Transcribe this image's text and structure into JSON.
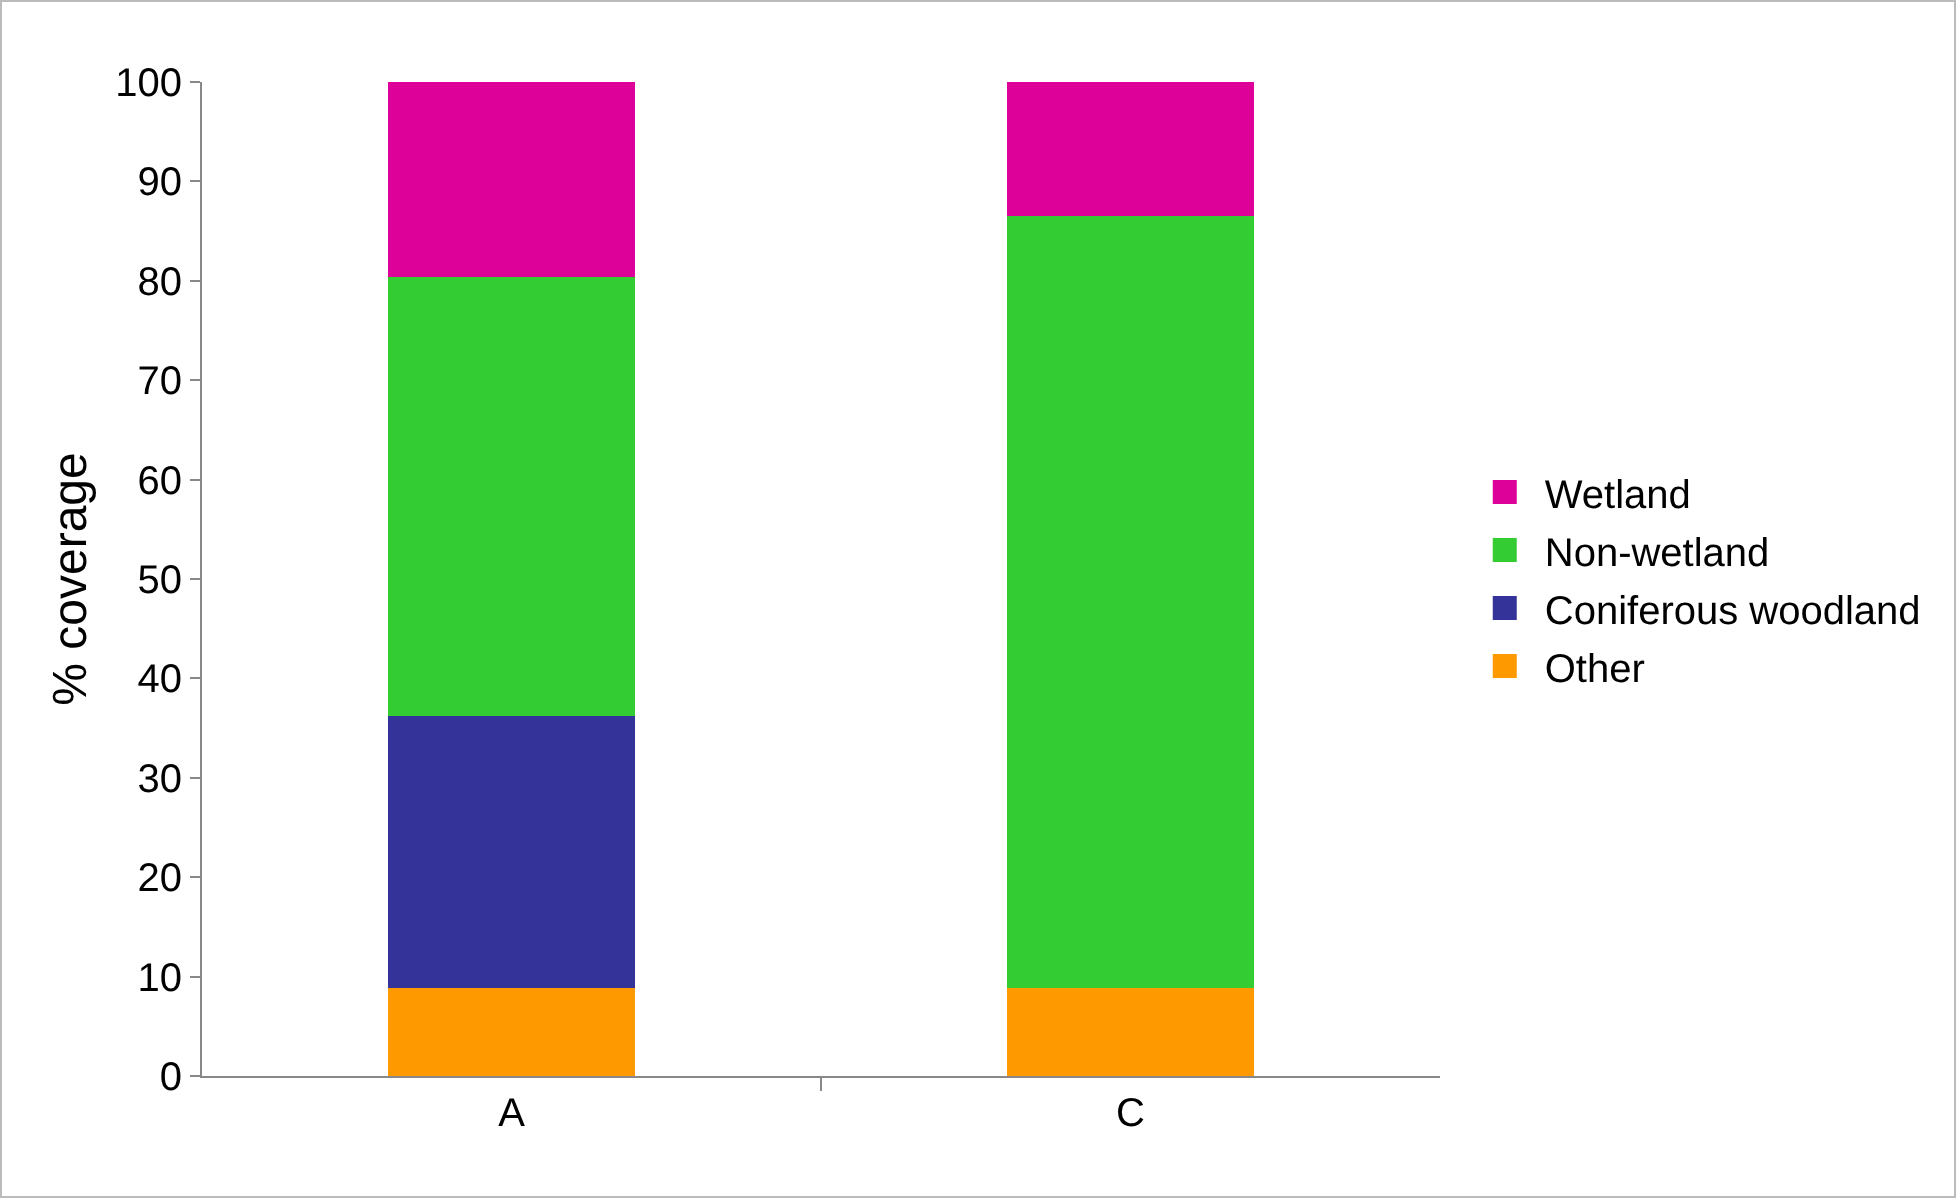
{
  "chart_data": {
    "type": "bar",
    "stacked": true,
    "ylabel": "% coverage",
    "categories": [
      "A",
      "C"
    ],
    "series": [
      {
        "name": "Other",
        "color": "#ff9900",
        "values": [
          8.9,
          8.9
        ]
      },
      {
        "name": "Coniferous woodland",
        "color": "#333399",
        "values": [
          27.3,
          0
        ]
      },
      {
        "name": "Non-wetland",
        "color": "#33cc33",
        "values": [
          44.2,
          77.6
        ]
      },
      {
        "name": "Wetland",
        "color": "#dd0099",
        "values": [
          19.6,
          13.6
        ]
      }
    ],
    "ylim": [
      0,
      100
    ],
    "yticks": [
      0,
      10,
      20,
      30,
      40,
      50,
      60,
      70,
      80,
      90,
      100
    ],
    "grid": false,
    "legend": "right"
  }
}
